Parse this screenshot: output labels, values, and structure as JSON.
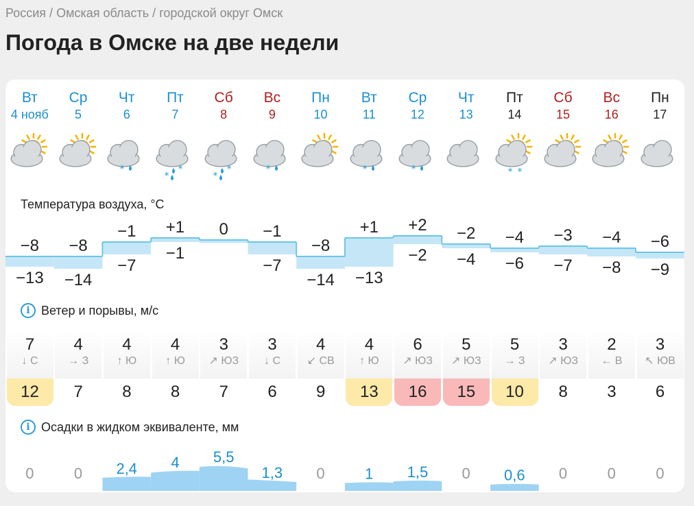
{
  "breadcrumb": {
    "country": "Россия",
    "region": "Омская область",
    "district": "городской округ Омск",
    "sep": "/"
  },
  "title": "Погода в Омске на две недели",
  "days": [
    {
      "name": "Вт",
      "date": "4 нояб",
      "type": "work",
      "weather": "partly-cloudy",
      "precip": "none"
    },
    {
      "name": "Ср",
      "date": "5",
      "type": "work",
      "weather": "partly-cloudy",
      "precip": "none"
    },
    {
      "name": "Чт",
      "date": "6",
      "type": "work",
      "weather": "cloudy",
      "precip": "snow-rain-light"
    },
    {
      "name": "Пт",
      "date": "7",
      "type": "work",
      "weather": "cloudy",
      "precip": "snow-rain"
    },
    {
      "name": "Сб",
      "date": "8",
      "type": "weekend",
      "weather": "cloudy",
      "precip": "snow-rain"
    },
    {
      "name": "Вс",
      "date": "9",
      "type": "weekend",
      "weather": "cloudy",
      "precip": "snow-rain-light"
    },
    {
      "name": "Пн",
      "date": "10",
      "type": "work",
      "weather": "partly-cloudy",
      "precip": "none"
    },
    {
      "name": "Вт",
      "date": "11",
      "type": "work",
      "weather": "cloudy",
      "precip": "snow-rain-light"
    },
    {
      "name": "Ср",
      "date": "12",
      "type": "work",
      "weather": "cloudy",
      "precip": "snow-rain-light"
    },
    {
      "name": "Чт",
      "date": "13",
      "type": "work",
      "weather": "cloudy",
      "precip": "none"
    },
    {
      "name": "Пт",
      "date": "14",
      "type": "plain",
      "weather": "partly-cloudy",
      "precip": "snow-light"
    },
    {
      "name": "Сб",
      "date": "15",
      "type": "weekend",
      "weather": "partly-cloudy",
      "precip": "none"
    },
    {
      "name": "Вс",
      "date": "16",
      "type": "weekend",
      "weather": "partly-cloudy",
      "precip": "none"
    },
    {
      "name": "Пн",
      "date": "17",
      "type": "plain",
      "weather": "cloudy",
      "precip": "none"
    }
  ],
  "temperature": {
    "label": "Температура воздуха, °C",
    "max": [
      -8,
      -8,
      -1,
      1,
      0,
      -1,
      -8,
      1,
      2,
      -2,
      -4,
      -3,
      -4,
      -6
    ],
    "min": [
      -13,
      -14,
      -7,
      -1,
      0,
      -7,
      -14,
      -13,
      -2,
      -4,
      -6,
      -7,
      -8,
      -9
    ],
    "max_labels": [
      "−8",
      "−8",
      "−1",
      "+1",
      "0",
      "−1",
      "−8",
      "+1",
      "+2",
      "−2",
      "−4",
      "−3",
      "−4",
      "−6"
    ],
    "min_labels": [
      "−13",
      "−14",
      "−7",
      "−1",
      "",
      "−7",
      "−14",
      "−13",
      "−2",
      "−4",
      "−6",
      "−7",
      "−8",
      "−9"
    ]
  },
  "wind": {
    "label": "Ветер и порывы, м/с",
    "speed": [
      "7",
      "4",
      "4",
      "4",
      "3",
      "3",
      "4",
      "4",
      "6",
      "5",
      "5",
      "3",
      "2",
      "3"
    ],
    "direction": [
      "С",
      "З",
      "Ю",
      "Ю",
      "ЮЗ",
      "С",
      "СВ",
      "Ю",
      "ЮЗ",
      "ЮЗ",
      "З",
      "ЮЗ",
      "В",
      "ЮВ"
    ],
    "arrow": [
      "↓",
      "→",
      "↑",
      "↑",
      "↗",
      "↓",
      "↙",
      "↑",
      "↗",
      "↗",
      "→",
      "↗",
      "←",
      "↖"
    ],
    "gusts": [
      "12",
      "7",
      "8",
      "8",
      "7",
      "6",
      "9",
      "13",
      "16",
      "15",
      "10",
      "8",
      "3",
      "6"
    ],
    "gust_colors": [
      "#fde9a8",
      "#ffffff",
      "#ffffff",
      "#ffffff",
      "#ffffff",
      "#ffffff",
      "#ffffff",
      "#fde9a8",
      "#f9b9b9",
      "#f9b9b9",
      "#fde9a8",
      "#ffffff",
      "#ffffff",
      "#ffffff"
    ]
  },
  "precipitation": {
    "label": "Осадки в жидком эквиваленте, мм",
    "values": [
      0,
      0,
      2.4,
      4,
      5.5,
      1.3,
      0,
      1,
      1.5,
      0,
      0.6,
      0,
      0,
      0
    ],
    "labels": [
      "0",
      "0",
      "2,4",
      "4",
      "5,5",
      "1,3",
      "0",
      "1",
      "1,5",
      "0",
      "0,6",
      "0",
      "0",
      "0"
    ]
  },
  "colors": {
    "accent": "#1a8fd0",
    "weekend": "#b01e1e",
    "temp_fill": "#c5e6f7",
    "temp_line": "#6cc6e6",
    "precip_fill": "#9fd3f3"
  }
}
